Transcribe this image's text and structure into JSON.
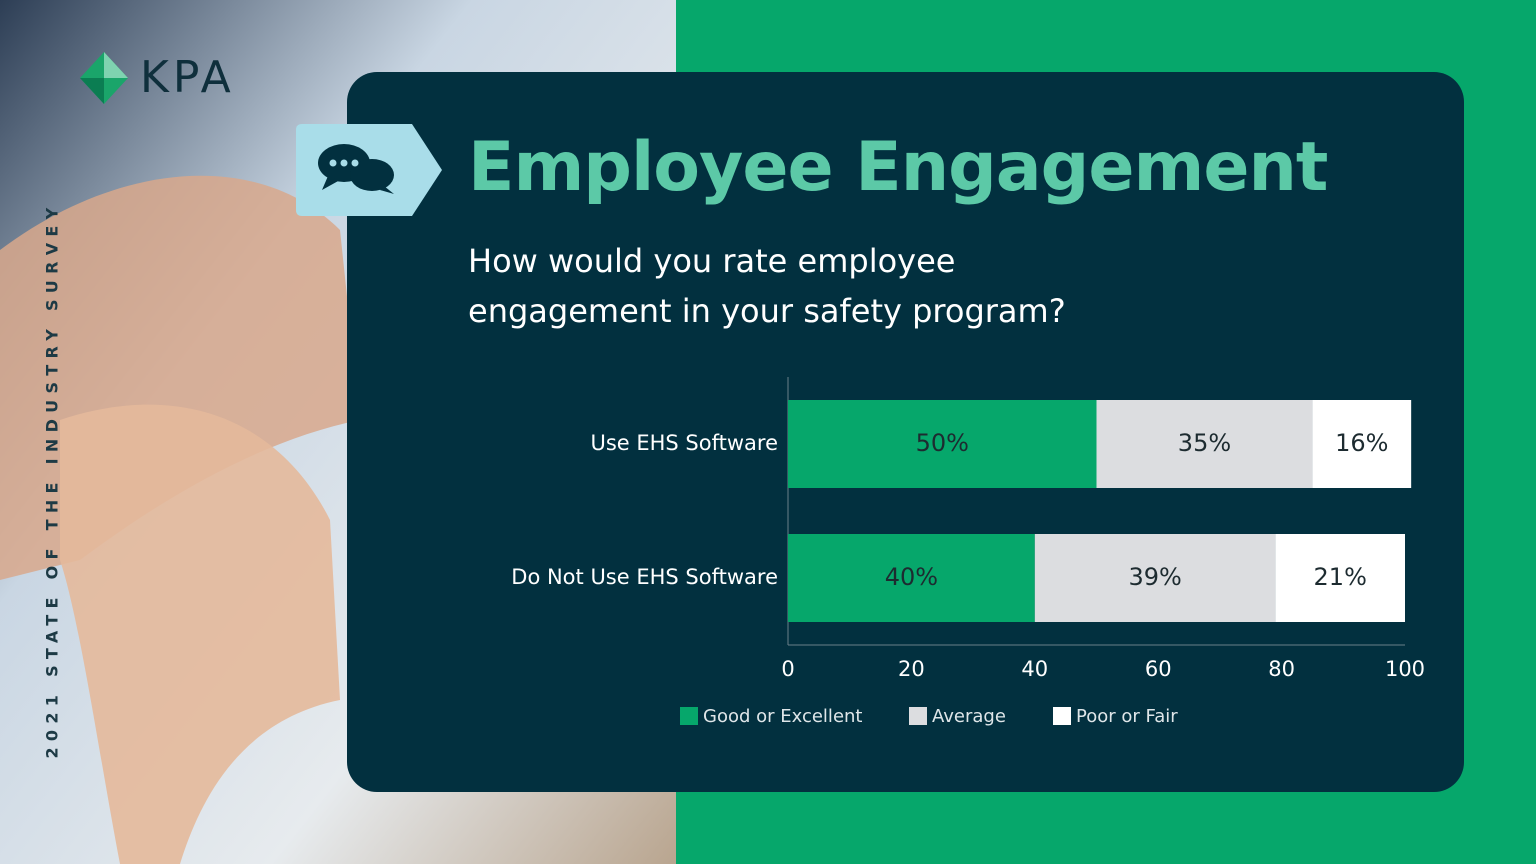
{
  "brand": "KPA",
  "side_label": "2021 STATE OF THE INDUSTRY SURVEY",
  "chart_data": {
    "type": "stacked-bar-horizontal",
    "title": "Employee Engagement",
    "subtitle": "How would you rate employee engagement in your safety program?",
    "categories": [
      "Use EHS Software",
      "Do Not Use EHS Software"
    ],
    "series": [
      {
        "name": "Good or Excellent",
        "color": "#06a76b",
        "values": [
          50,
          40
        ],
        "value_labels": [
          "50%",
          "40%"
        ]
      },
      {
        "name": "Average",
        "color": "#dcdde0",
        "values": [
          35,
          39
        ],
        "value_labels": [
          "35%",
          "39%"
        ]
      },
      {
        "name": "Poor or Fair",
        "color": "#ffffff",
        "values": [
          16,
          21
        ],
        "value_labels": [
          "16%",
          "21%"
        ]
      }
    ],
    "xlim": [
      0,
      100
    ],
    "xticks": [
      0,
      20,
      40,
      60,
      80,
      100
    ],
    "grid": false,
    "legend": "bottom"
  }
}
